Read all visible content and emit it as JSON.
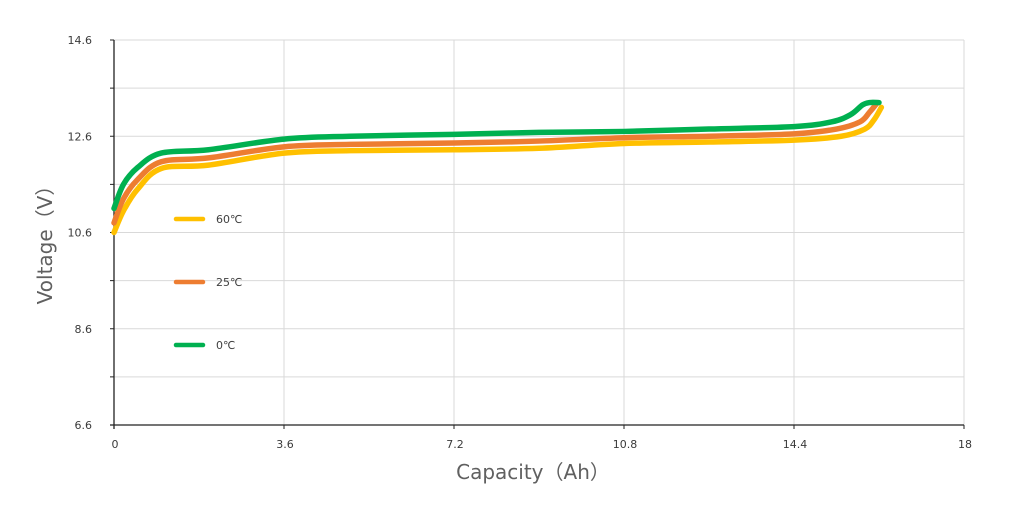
{
  "chart_data": {
    "type": "line",
    "title": "",
    "xlabel": "Capacity（Ah）",
    "ylabel": "Voltage（V）",
    "xlim": [
      0,
      18
    ],
    "ylim": [
      6.6,
      14.6
    ],
    "x_ticks": [
      "0",
      "3.6",
      "7.2",
      "10.8",
      "14.4",
      "18"
    ],
    "y_ticks": [
      "6.6",
      "8.6",
      "10.6",
      "12.6",
      "14.6"
    ],
    "grid": true,
    "legend_position": "inside-left",
    "series": [
      {
        "name": "60℃",
        "color": "#FFC000",
        "x": [
          0,
          0.2,
          0.5,
          1.0,
          2.0,
          3.6,
          5.0,
          7.2,
          9.0,
          10.8,
          12.6,
          14.4,
          15.4,
          15.9,
          16.1,
          16.25
        ],
        "y": [
          10.6,
          11.05,
          11.5,
          11.93,
          12.0,
          12.25,
          12.3,
          12.32,
          12.35,
          12.45,
          12.48,
          12.52,
          12.6,
          12.75,
          12.95,
          13.2
        ]
      },
      {
        "name": "25℃",
        "color": "#ED7D31",
        "x": [
          0,
          0.2,
          0.5,
          1.0,
          2.0,
          3.6,
          5.0,
          7.2,
          9.0,
          10.8,
          12.6,
          14.4,
          15.3,
          15.8,
          16.0,
          16.15
        ],
        "y": [
          10.8,
          11.3,
          11.7,
          12.07,
          12.15,
          12.38,
          12.43,
          12.46,
          12.5,
          12.57,
          12.6,
          12.65,
          12.75,
          12.9,
          13.1,
          13.28
        ]
      },
      {
        "name": "0℃",
        "color": "#00B050",
        "x": [
          0,
          0.2,
          0.5,
          1.0,
          2.0,
          3.6,
          5.0,
          7.2,
          9.0,
          10.8,
          12.6,
          14.4,
          15.2,
          15.6,
          15.85,
          16.0,
          16.2
        ],
        "y": [
          11.1,
          11.6,
          11.95,
          12.25,
          12.32,
          12.54,
          12.6,
          12.64,
          12.68,
          12.7,
          12.75,
          12.8,
          12.9,
          13.05,
          13.25,
          13.3,
          13.3
        ]
      }
    ]
  },
  "legend": [
    {
      "label": "60℃",
      "color": "#FFC000"
    },
    {
      "label": "25℃",
      "color": "#ED7D31"
    },
    {
      "label": "0℃",
      "color": "#00B050"
    }
  ],
  "axes": {
    "xlabel": "Capacity（Ah）",
    "ylabel": "Voltage（V）"
  }
}
